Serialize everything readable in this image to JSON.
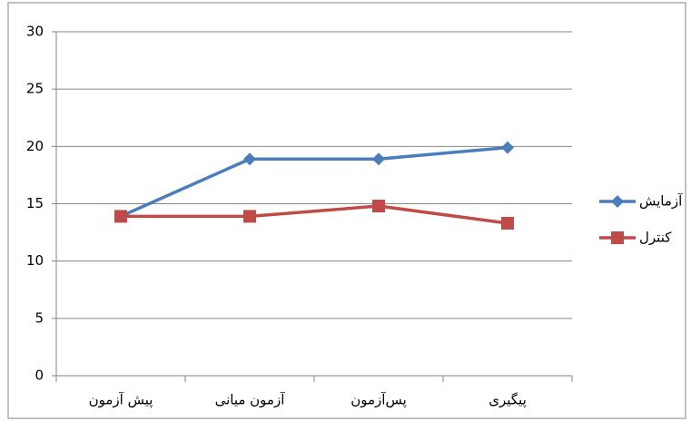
{
  "chart_data": {
    "type": "line",
    "categories": [
      "پیش آزمون",
      "آزمون میانی",
      "پس‌آزمون",
      "پیگیری"
    ],
    "series": [
      {
        "name": "آزمایش",
        "color": "#4a7ebb",
        "marker": "diamond",
        "values": [
          13.9,
          18.9,
          18.9,
          19.9
        ]
      },
      {
        "name": "کنترل",
        "color": "#be4b48",
        "marker": "square",
        "values": [
          13.9,
          13.9,
          14.8,
          13.3
        ]
      }
    ],
    "ylim": [
      0,
      30
    ],
    "yticks": [
      0,
      5,
      10,
      15,
      20,
      25,
      30
    ],
    "grid": true,
    "legend": "right"
  }
}
